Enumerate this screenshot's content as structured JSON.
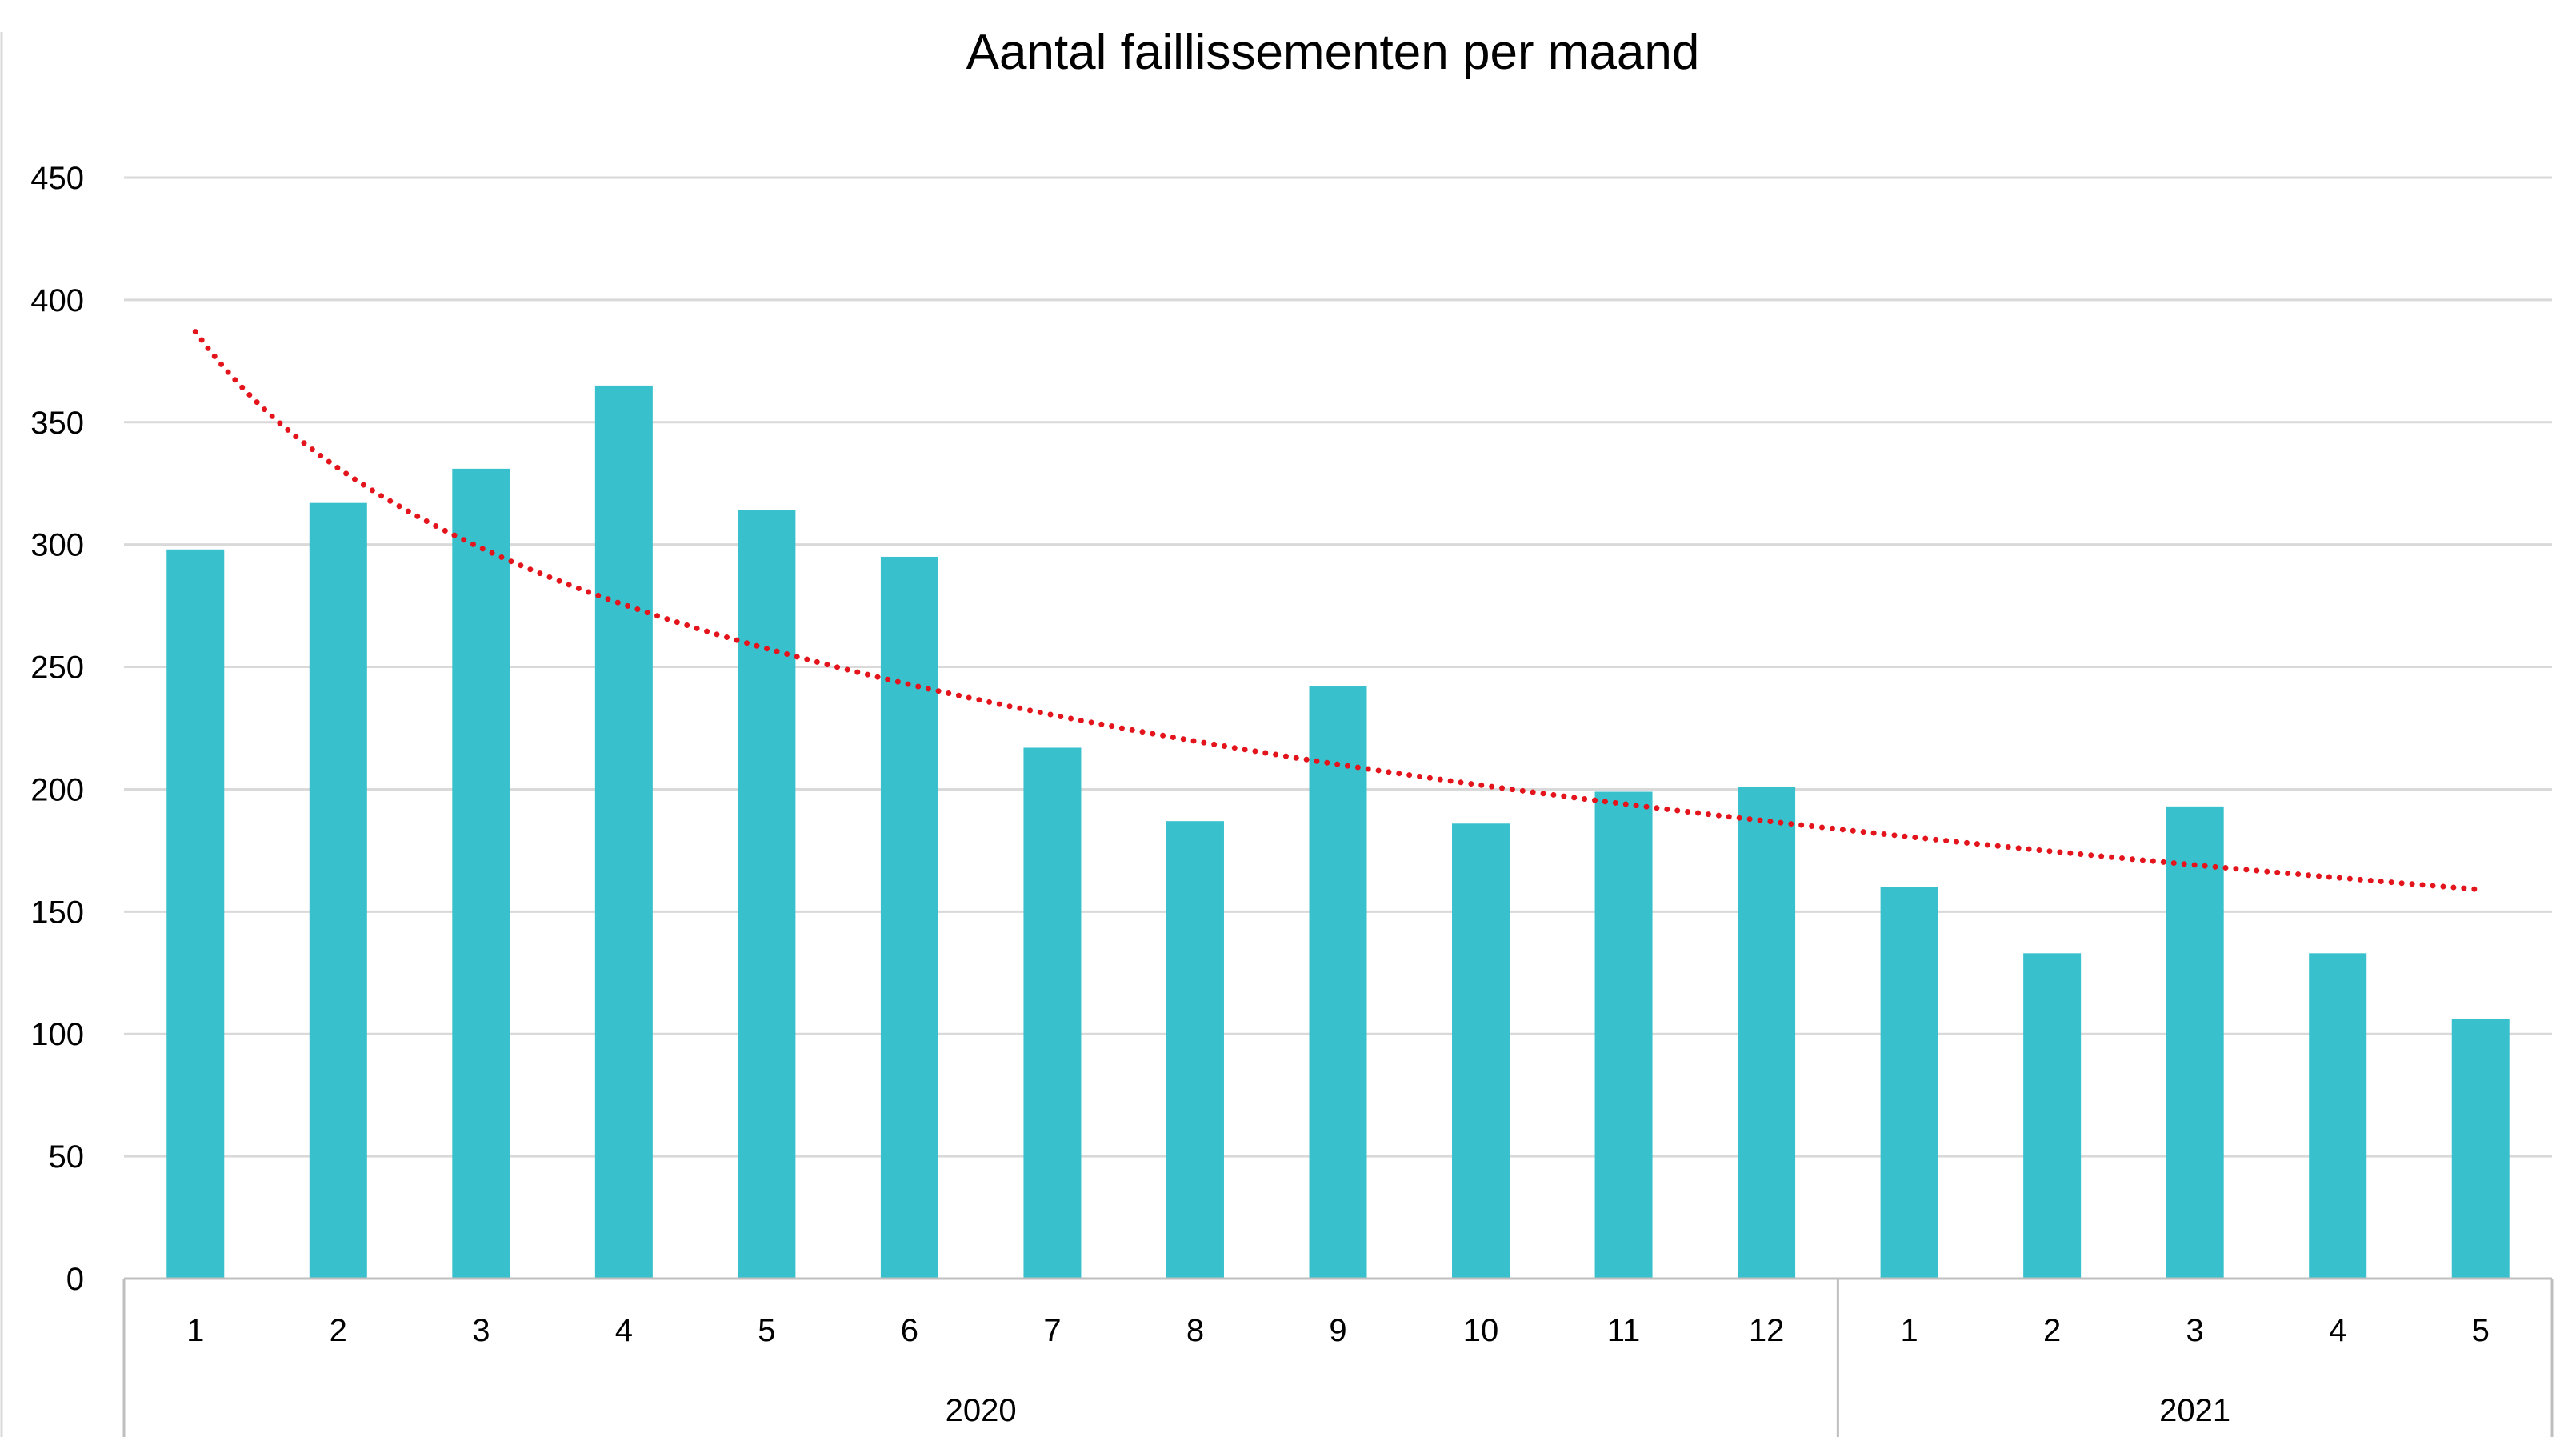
{
  "chart_data": {
    "type": "bar",
    "title": "Aantal faillissementen per maand",
    "xlabel": "",
    "ylabel": "",
    "ylim": [
      0,
      450
    ],
    "yticks": [
      0,
      50,
      100,
      150,
      200,
      250,
      300,
      350,
      400,
      450
    ],
    "grid": true,
    "legend": "none",
    "categories": [
      "1",
      "2",
      "3",
      "4",
      "5",
      "6",
      "7",
      "8",
      "9",
      "10",
      "11",
      "12",
      "1",
      "2",
      "3",
      "4",
      "5"
    ],
    "groups": [
      {
        "label": "2020",
        "count": 12
      },
      {
        "label": "2021",
        "count": 5
      }
    ],
    "values": [
      298,
      317,
      331,
      365,
      314,
      295,
      217,
      187,
      242,
      186,
      199,
      201,
      160,
      133,
      193,
      133,
      106
    ],
    "trendline": {
      "type": "logarithmic",
      "style": "dotted",
      "start_value": 387,
      "end_value": 159
    },
    "colors": {
      "bar": "#38c0cc",
      "trendline": "#e3141b",
      "grid": "#d9d9d9",
      "axis": "#bfbfbf"
    }
  }
}
